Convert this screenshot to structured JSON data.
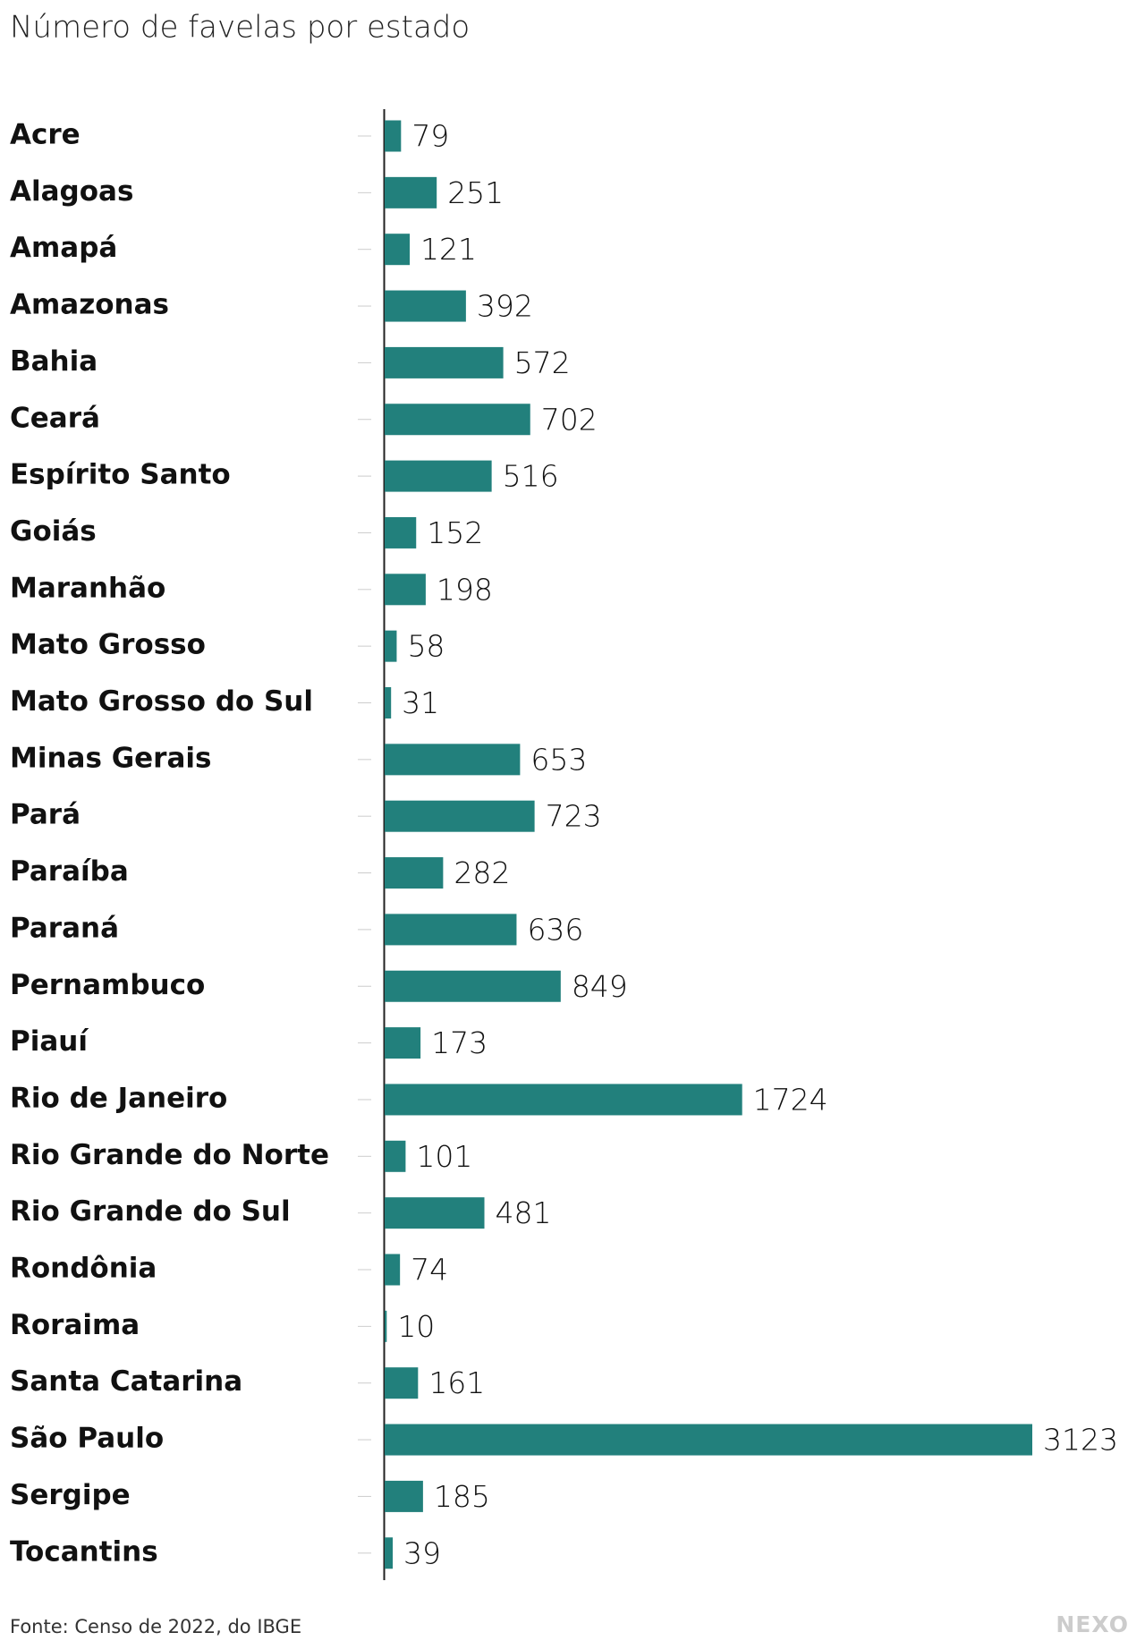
{
  "chart_data": {
    "type": "bar",
    "orientation": "horizontal",
    "title": "Número de favelas por estado",
    "categories": [
      "Acre",
      "Alagoas",
      "Amapá",
      "Amazonas",
      "Bahia",
      "Ceará",
      "Espírito Santo",
      "Goiás",
      "Maranhão",
      "Mato Grosso",
      "Mato Grosso do Sul",
      "Minas Gerais",
      "Pará",
      "Paraíba",
      "Paraná",
      "Pernambuco",
      "Piauí",
      "Rio de Janeiro",
      "Rio Grande do Norte",
      "Rio Grande do Sul",
      "Rondônia",
      "Roraima",
      "Santa Catarina",
      "São Paulo",
      "Sergipe",
      "Tocantins"
    ],
    "values": [
      79,
      251,
      121,
      392,
      572,
      702,
      516,
      152,
      198,
      58,
      31,
      653,
      723,
      282,
      636,
      849,
      173,
      1724,
      101,
      481,
      74,
      10,
      161,
      3123,
      185,
      39
    ],
    "color": "#22807c",
    "source": "Fonte: Censo de 2022, do IBGE",
    "logo": "NEXO"
  }
}
